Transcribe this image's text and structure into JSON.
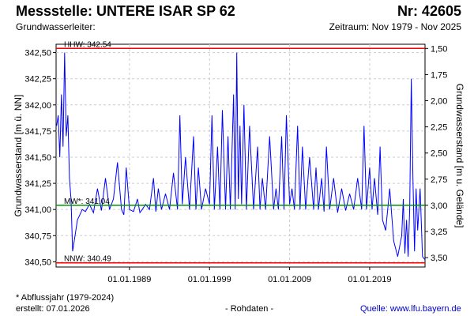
{
  "header": {
    "title": "Messstelle: UNTERE ISAR SP 62",
    "nr": "Nr: 42605",
    "subtitle_left": "Grundwasserleiter:",
    "subtitle_right": "Zeitraum: Nov 1979 - Nov 2025"
  },
  "footer": {
    "note": "* Abflussjahr (1979-2024)",
    "created": "erstellt:  07.01.2026",
    "rawdata": "- Rohdaten -",
    "source": "Quelle:  www.lfu.bayern.de"
  },
  "chart_data": {
    "type": "line",
    "ylabel_left": "Grundwasserstand [m ü. NN]",
    "ylabel_right": "Grundwasserstand [m u. Gelände]",
    "ylim": [
      340.45,
      342.58
    ],
    "xlim": [
      "1979-11-01",
      "2025-11-30"
    ],
    "grid": true,
    "y_ticks_left": [
      "340,50",
      "340,75",
      "341,00",
      "341,25",
      "341,50",
      "341,75",
      "342,00",
      "342,25",
      "342,50"
    ],
    "y_tick_values_left": [
      340.5,
      340.75,
      341.0,
      341.25,
      341.5,
      341.75,
      342.0,
      342.25,
      342.5
    ],
    "y_ticks_right": [
      "1,50",
      "1,75",
      "2,00",
      "2,25",
      "2,50",
      "2,75",
      "3,00",
      "3,25",
      "3,50"
    ],
    "y_tick_values_right": [
      1.5,
      1.75,
      2.0,
      2.25,
      2.5,
      2.75,
      3.0,
      3.25,
      3.5
    ],
    "x_ticks": [
      "01.01.1989",
      "01.01.1999",
      "01.01.2009",
      "01.01.2019"
    ],
    "x_tick_values": [
      1989.0,
      1999.0,
      2009.0,
      2019.0
    ],
    "reference_lines": [
      {
        "label": "HHW: 342.54",
        "value": 342.54,
        "color": "#ff0000"
      },
      {
        "label": "MW*: 341.04",
        "value": 341.04,
        "color": "#009900"
      },
      {
        "label": "NNW: 340.49",
        "value": 340.49,
        "color": "#ff0000"
      }
    ],
    "series": [
      {
        "color": "#0000ff",
        "x": [
          1979.9,
          1980.1,
          1980.3,
          1980.5,
          1980.7,
          1980.9,
          1981.1,
          1981.3,
          1981.5,
          1981.7,
          1981.9,
          1982.2,
          1982.5,
          1982.8,
          1983.1,
          1983.5,
          1984.0,
          1984.5,
          1985.0,
          1985.5,
          1986.0,
          1986.5,
          1987.0,
          1987.5,
          1988.0,
          1988.3,
          1988.6,
          1989.0,
          1989.5,
          1990.0,
          1990.3,
          1990.6,
          1991.0,
          1991.5,
          1992.0,
          1992.3,
          1992.6,
          1993.0,
          1993.5,
          1994.0,
          1994.5,
          1995.0,
          1995.3,
          1995.6,
          1996.0,
          1996.5,
          1997.0,
          1997.3,
          1997.6,
          1998.0,
          1998.5,
          1999.0,
          1999.3,
          1999.6,
          2000.0,
          2000.3,
          2000.6,
          2001.0,
          2001.3,
          2001.6,
          2002.0,
          2002.2,
          2002.4,
          2002.6,
          2002.8,
          2003.0,
          2003.3,
          2003.6,
          2004.0,
          2004.5,
          2005.0,
          2005.3,
          2005.6,
          2006.0,
          2006.5,
          2007.0,
          2007.3,
          2007.6,
          2008.0,
          2008.3,
          2008.6,
          2009.0,
          2009.3,
          2009.6,
          2010.0,
          2010.3,
          2010.6,
          2011.0,
          2011.5,
          2012.0,
          2012.3,
          2012.6,
          2013.0,
          2013.3,
          2013.6,
          2014.0,
          2014.5,
          2015.0,
          2015.5,
          2016.0,
          2016.5,
          2017.0,
          2017.5,
          2018.0,
          2018.3,
          2018.6,
          2019.0,
          2019.3,
          2019.6,
          2020.0,
          2020.3,
          2020.6,
          2021.0,
          2021.5,
          2022.0,
          2022.5,
          2023.0,
          2023.2,
          2023.4,
          2023.6,
          2023.8,
          2024.0,
          2024.2,
          2024.4,
          2024.6,
          2024.8,
          2025.0,
          2025.3,
          2025.6,
          2025.9
        ],
        "values": [
          341.8,
          341.9,
          341.5,
          342.1,
          341.6,
          342.5,
          341.7,
          341.9,
          341.3,
          341.1,
          340.6,
          340.75,
          340.9,
          340.95,
          341.0,
          340.98,
          341.05,
          340.97,
          341.2,
          340.99,
          341.3,
          341.0,
          341.1,
          341.45,
          341.0,
          340.95,
          341.4,
          341.0,
          340.98,
          341.1,
          340.97,
          341.0,
          341.05,
          341.0,
          341.3,
          340.98,
          341.2,
          341.0,
          341.15,
          341.0,
          341.35,
          341.0,
          341.9,
          341.05,
          341.5,
          341.0,
          341.7,
          341.0,
          341.4,
          341.0,
          341.2,
          341.05,
          341.9,
          341.0,
          341.6,
          341.0,
          341.95,
          341.0,
          341.7,
          341.0,
          342.1,
          341.0,
          342.5,
          341.1,
          341.8,
          341.05,
          342.0,
          341.0,
          341.8,
          341.0,
          341.6,
          341.0,
          341.3,
          341.0,
          341.7,
          341.0,
          341.2,
          341.0,
          341.7,
          341.0,
          341.9,
          341.05,
          341.2,
          341.0,
          341.8,
          341.0,
          341.6,
          341.0,
          341.5,
          341.0,
          341.4,
          341.0,
          341.3,
          340.98,
          341.6,
          341.0,
          341.3,
          340.97,
          341.2,
          340.99,
          341.15,
          341.0,
          341.3,
          341.0,
          341.8,
          341.0,
          341.4,
          341.0,
          341.3,
          340.95,
          341.6,
          340.9,
          340.8,
          341.2,
          340.7,
          340.55,
          340.75,
          341.1,
          340.58,
          340.9,
          340.55,
          341.0,
          342.25,
          341.3,
          340.6,
          341.2,
          340.8,
          341.2,
          340.55,
          340.52
        ]
      }
    ]
  }
}
